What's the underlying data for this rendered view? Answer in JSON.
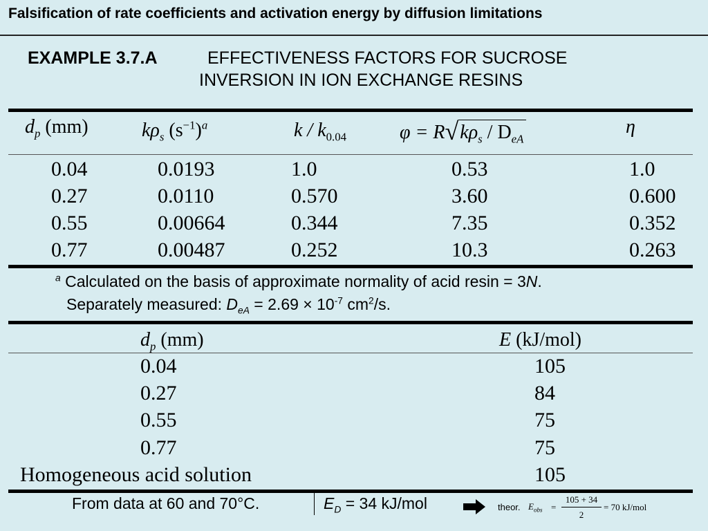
{
  "header": {
    "title": "Falsification of rate coefficients and activation energy by diffusion limitations"
  },
  "example": {
    "label": "EXAMPLE 3.7.A",
    "title_line1": "EFFECTIVENESS FACTORS FOR SUCROSE",
    "title_line2": "INVERSION IN ION EXCHANGE RESINS"
  },
  "table1": {
    "headers": {
      "dp_symbol": "d",
      "dp_sub": "p",
      "dp_unit": " (mm)",
      "krho": "kρ",
      "krho_sub": "s",
      "krho_unit_open": " (s",
      "krho_unit_exp": "−1",
      "krho_unit_close": ")",
      "krho_note": "a",
      "kratio": "k / k",
      "kratio_sub": "0.04",
      "phi": "φ = R",
      "phi_rad_k": "kρ",
      "phi_rad_sub": "s",
      "phi_rad_mid": " / D",
      "phi_rad_sub2": "eA",
      "eta": "η"
    },
    "rows": [
      {
        "dp": "0.04",
        "krho": "0.0193",
        "kratio": "1.0",
        "phi": "0.53",
        "eta": "1.0"
      },
      {
        "dp": "0.27",
        "krho": "0.0110",
        "kratio": "0.570",
        "phi": "3.60",
        "eta": "0.600"
      },
      {
        "dp": "0.55",
        "krho": "0.00664",
        "kratio": "0.344",
        "phi": "7.35",
        "eta": "0.352"
      },
      {
        "dp": "0.77",
        "krho": "0.00487",
        "kratio": "0.252",
        "phi": "10.3",
        "eta": "0.263"
      }
    ]
  },
  "footnote": {
    "marker": "a",
    "line1": " Calculated on the basis of approximate normality of acid resin = 3",
    "line1_unit": "N",
    "line1_end": ".",
    "line2_pre": "Separately measured:  ",
    "line2_D": "D",
    "line2_Dsub": "eA",
    "line2_val": " = 2.69 × 10",
    "line2_exp": "-7",
    "line2_unit": " cm",
    "line2_unit_exp": "2",
    "line2_end": "/s."
  },
  "table2": {
    "headers": {
      "dp_symbol": "d",
      "dp_sub": "p",
      "dp_unit": " (mm)",
      "E_symbol": "E",
      "E_unit": " (kJ/mol)"
    },
    "rows": [
      {
        "dp": "0.04",
        "E": "105"
      },
      {
        "dp": "0.27",
        "E": "84"
      },
      {
        "dp": "0.55",
        "E": "75"
      },
      {
        "dp": "0.77",
        "E": "75"
      },
      {
        "dp": "Homogeneous acid solution",
        "E": "105"
      }
    ]
  },
  "footer": {
    "note": "From data at 60 and 70°C.",
    "ed_symbol": "E",
    "ed_sub": "D",
    "ed_value": " = 34 kJ/mol",
    "arrow_icon": "right-arrow-icon",
    "theor_label": "theor.",
    "theor_E": "E",
    "theor_sub": "obs",
    "theor_eq": "=",
    "theor_num": "105 + 34",
    "theor_den": "2",
    "theor_result": "= 70 kJ/mol"
  }
}
